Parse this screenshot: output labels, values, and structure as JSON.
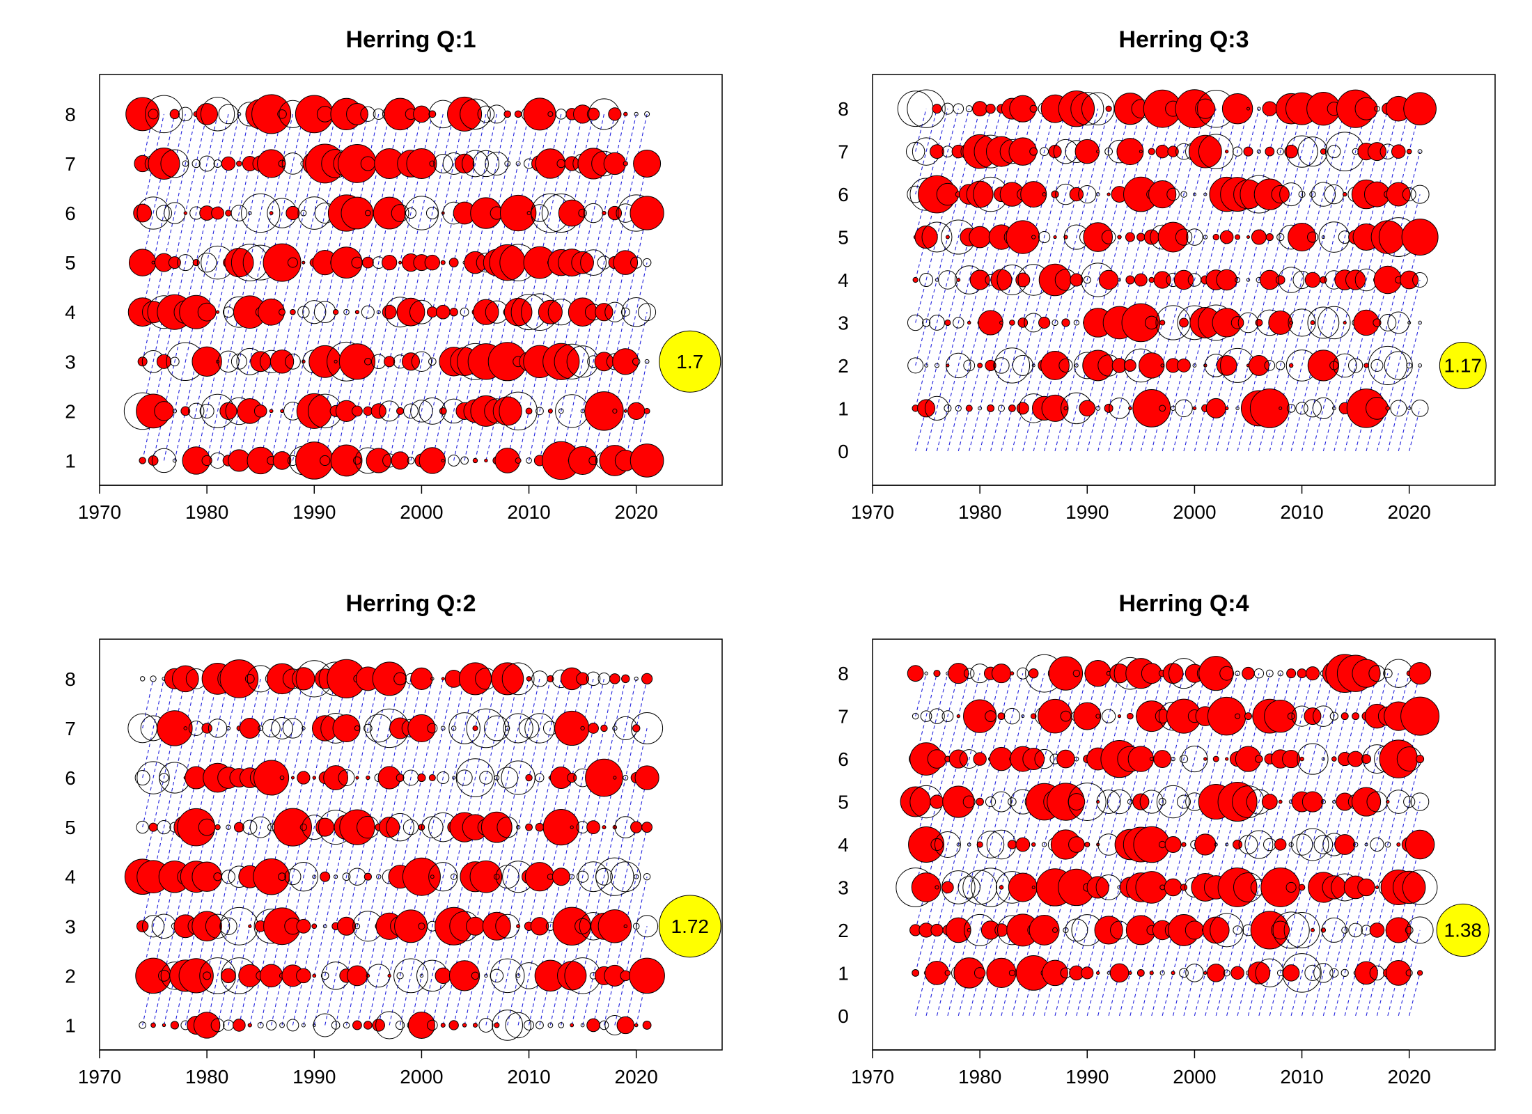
{
  "figure": {
    "background": "#ffffff",
    "colors": {
      "positive_fill": "#ff0000",
      "bubble_stroke": "#000000",
      "cohort_line": "#2222dd",
      "legend_fill": "#ffff00"
    }
  },
  "chart_data": [
    {
      "type": "scatter",
      "subtype": "bubble-residuals",
      "title": "Herring Q:1",
      "xlim": [
        1970,
        2028
      ],
      "x_ticks": [
        "1970",
        "1980",
        "1990",
        "2000",
        "2010",
        "2020"
      ],
      "y_ticks": [
        "1",
        "2",
        "3",
        "4",
        "5",
        "6",
        "7",
        "8"
      ],
      "ages": [
        1,
        2,
        3,
        4,
        5,
        6,
        7,
        8
      ],
      "year_range": [
        1974,
        2021
      ],
      "ymin": 0.5,
      "ymax": 8.8,
      "cohort_lines": true,
      "legend_value": "1.7",
      "seed": 11,
      "note": "bubble area proportional to residual size; red filled = positive, open = negative"
    },
    {
      "type": "scatter",
      "subtype": "bubble-residuals",
      "title": "Herring Q:3",
      "xlim": [
        1970,
        2028
      ],
      "x_ticks": [
        "1970",
        "1980",
        "1990",
        "2000",
        "2010",
        "2020"
      ],
      "y_ticks": [
        "0",
        "1",
        "2",
        "3",
        "4",
        "5",
        "6",
        "7",
        "8"
      ],
      "ages": [
        1,
        2,
        3,
        4,
        5,
        6,
        7,
        8
      ],
      "year_range": [
        1974,
        2021
      ],
      "ymin": -0.8,
      "ymax": 8.8,
      "cohort_lines": true,
      "legend_value": "1.17",
      "seed": 23,
      "note": "bubble area proportional to residual size; red filled = positive, open = negative"
    },
    {
      "type": "scatter",
      "subtype": "bubble-residuals",
      "title": "Herring Q:2",
      "xlim": [
        1970,
        2028
      ],
      "x_ticks": [
        "1970",
        "1980",
        "1990",
        "2000",
        "2010",
        "2020"
      ],
      "y_ticks": [
        "1",
        "2",
        "3",
        "4",
        "5",
        "6",
        "7",
        "8"
      ],
      "ages": [
        1,
        2,
        3,
        4,
        5,
        6,
        7,
        8
      ],
      "year_range": [
        1974,
        2021
      ],
      "ymin": 0.5,
      "ymax": 8.8,
      "cohort_lines": true,
      "legend_value": "1.72",
      "seed": 37,
      "note": "bubble area proportional to residual size; red filled = positive, open = negative"
    },
    {
      "type": "scatter",
      "subtype": "bubble-residuals",
      "title": "Herring Q:4",
      "xlim": [
        1970,
        2028
      ],
      "x_ticks": [
        "1970",
        "1980",
        "1990",
        "2000",
        "2010",
        "2020"
      ],
      "y_ticks": [
        "0",
        "1",
        "2",
        "3",
        "4",
        "5",
        "6",
        "7",
        "8"
      ],
      "ages": [
        1,
        2,
        3,
        4,
        5,
        6,
        7,
        8
      ],
      "year_range": [
        1974,
        2021
      ],
      "ymin": -0.8,
      "ymax": 8.8,
      "cohort_lines": true,
      "legend_value": "1.38",
      "seed": 53,
      "note": "bubble area proportional to residual size; red filled = positive, open = negative"
    }
  ]
}
